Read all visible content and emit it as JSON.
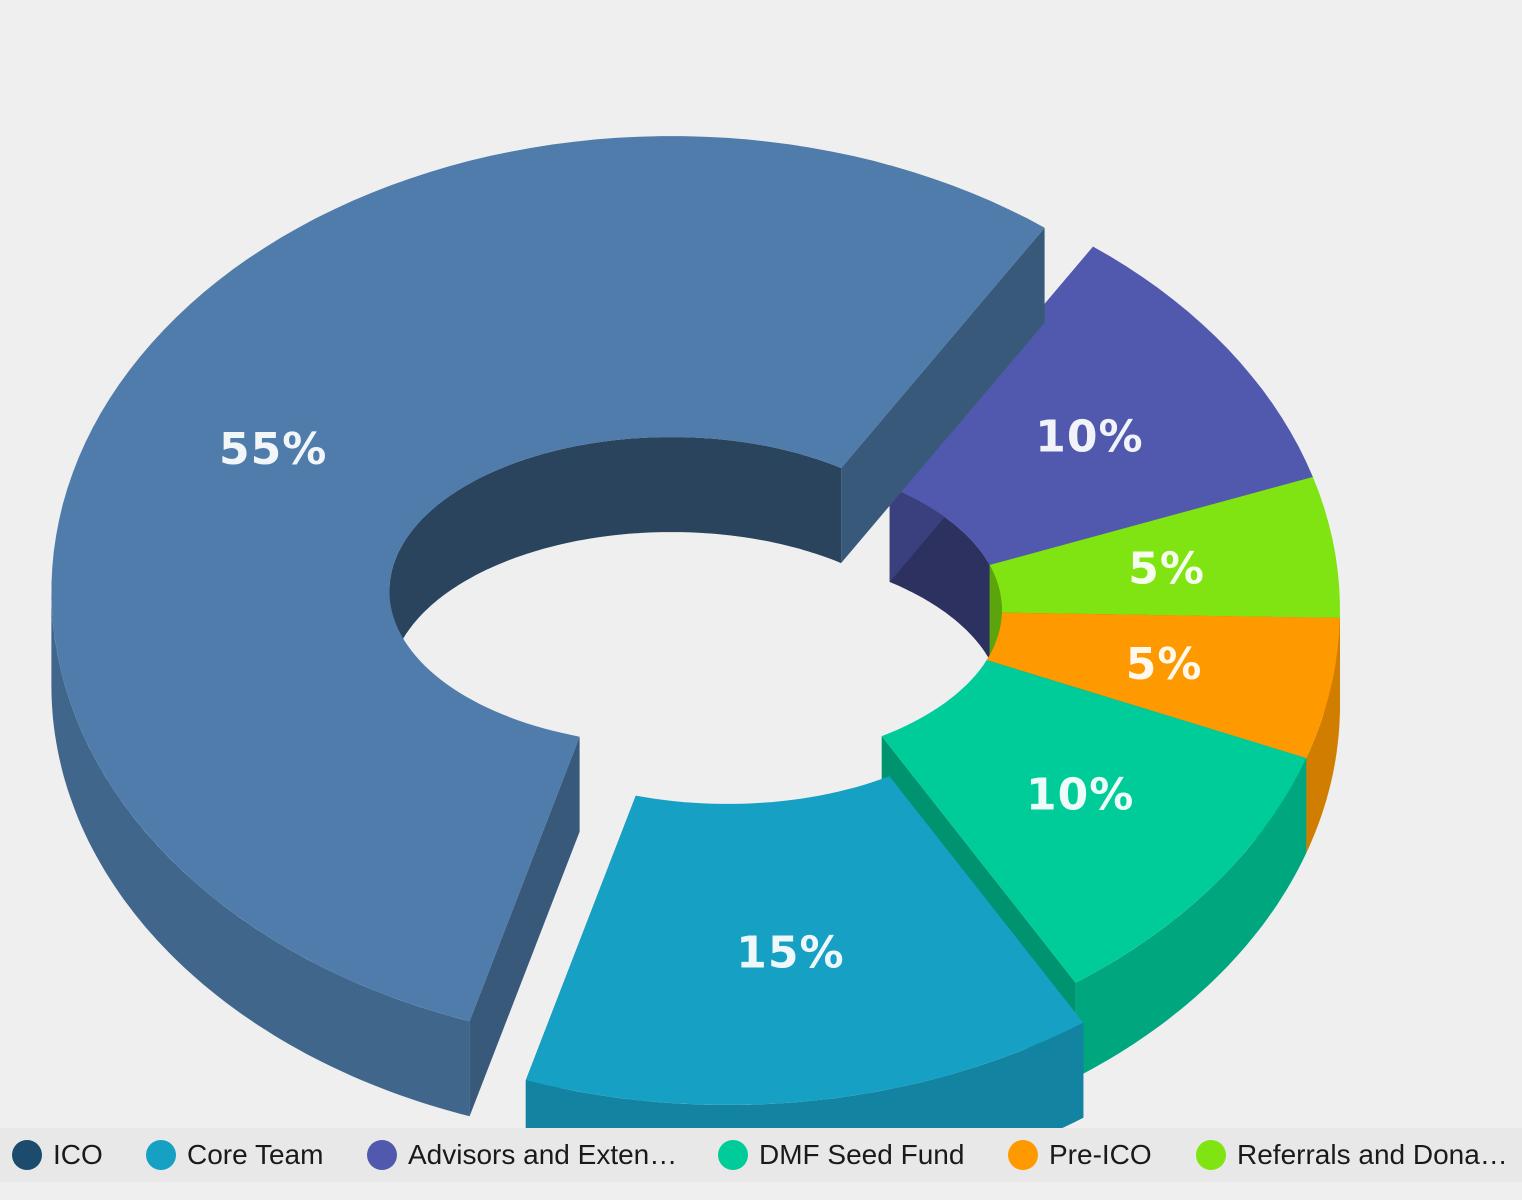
{
  "chart_data": {
    "type": "pie",
    "variant": "3d-donut",
    "title": "",
    "categories": [
      "ICO",
      "Core Team",
      "Advisors and Exten…",
      "DMF Seed Fund",
      "Pre-ICO",
      "Referrals and Dona…"
    ],
    "values": [
      55,
      15,
      10,
      10,
      5,
      5
    ],
    "value_labels": [
      "55%",
      "15%",
      "10%",
      "10%",
      "5%",
      "5%"
    ],
    "unit": "%",
    "exploded": [
      "ICO",
      "Core Team"
    ],
    "legend_position": "bottom",
    "colors": {
      "ICO": "#4f7cab",
      "Core Team": "#16a0c3",
      "Advisors and Exten…": "#5059ad",
      "DMF Seed Fund": "#00cc9a",
      "Pre-ICO": "#ff9900",
      "Referrals and Dona…": "#7fe411"
    },
    "legend_colors": {
      "ICO": "#1c4b6e",
      "Core Team": "#16a0c3",
      "Advisors and Exten…": "#5059ad",
      "DMF Seed Fund": "#00cc9a",
      "Pre-ICO": "#ff9900",
      "Referrals and Dona…": "#7fe411"
    },
    "background": "#efefef"
  }
}
